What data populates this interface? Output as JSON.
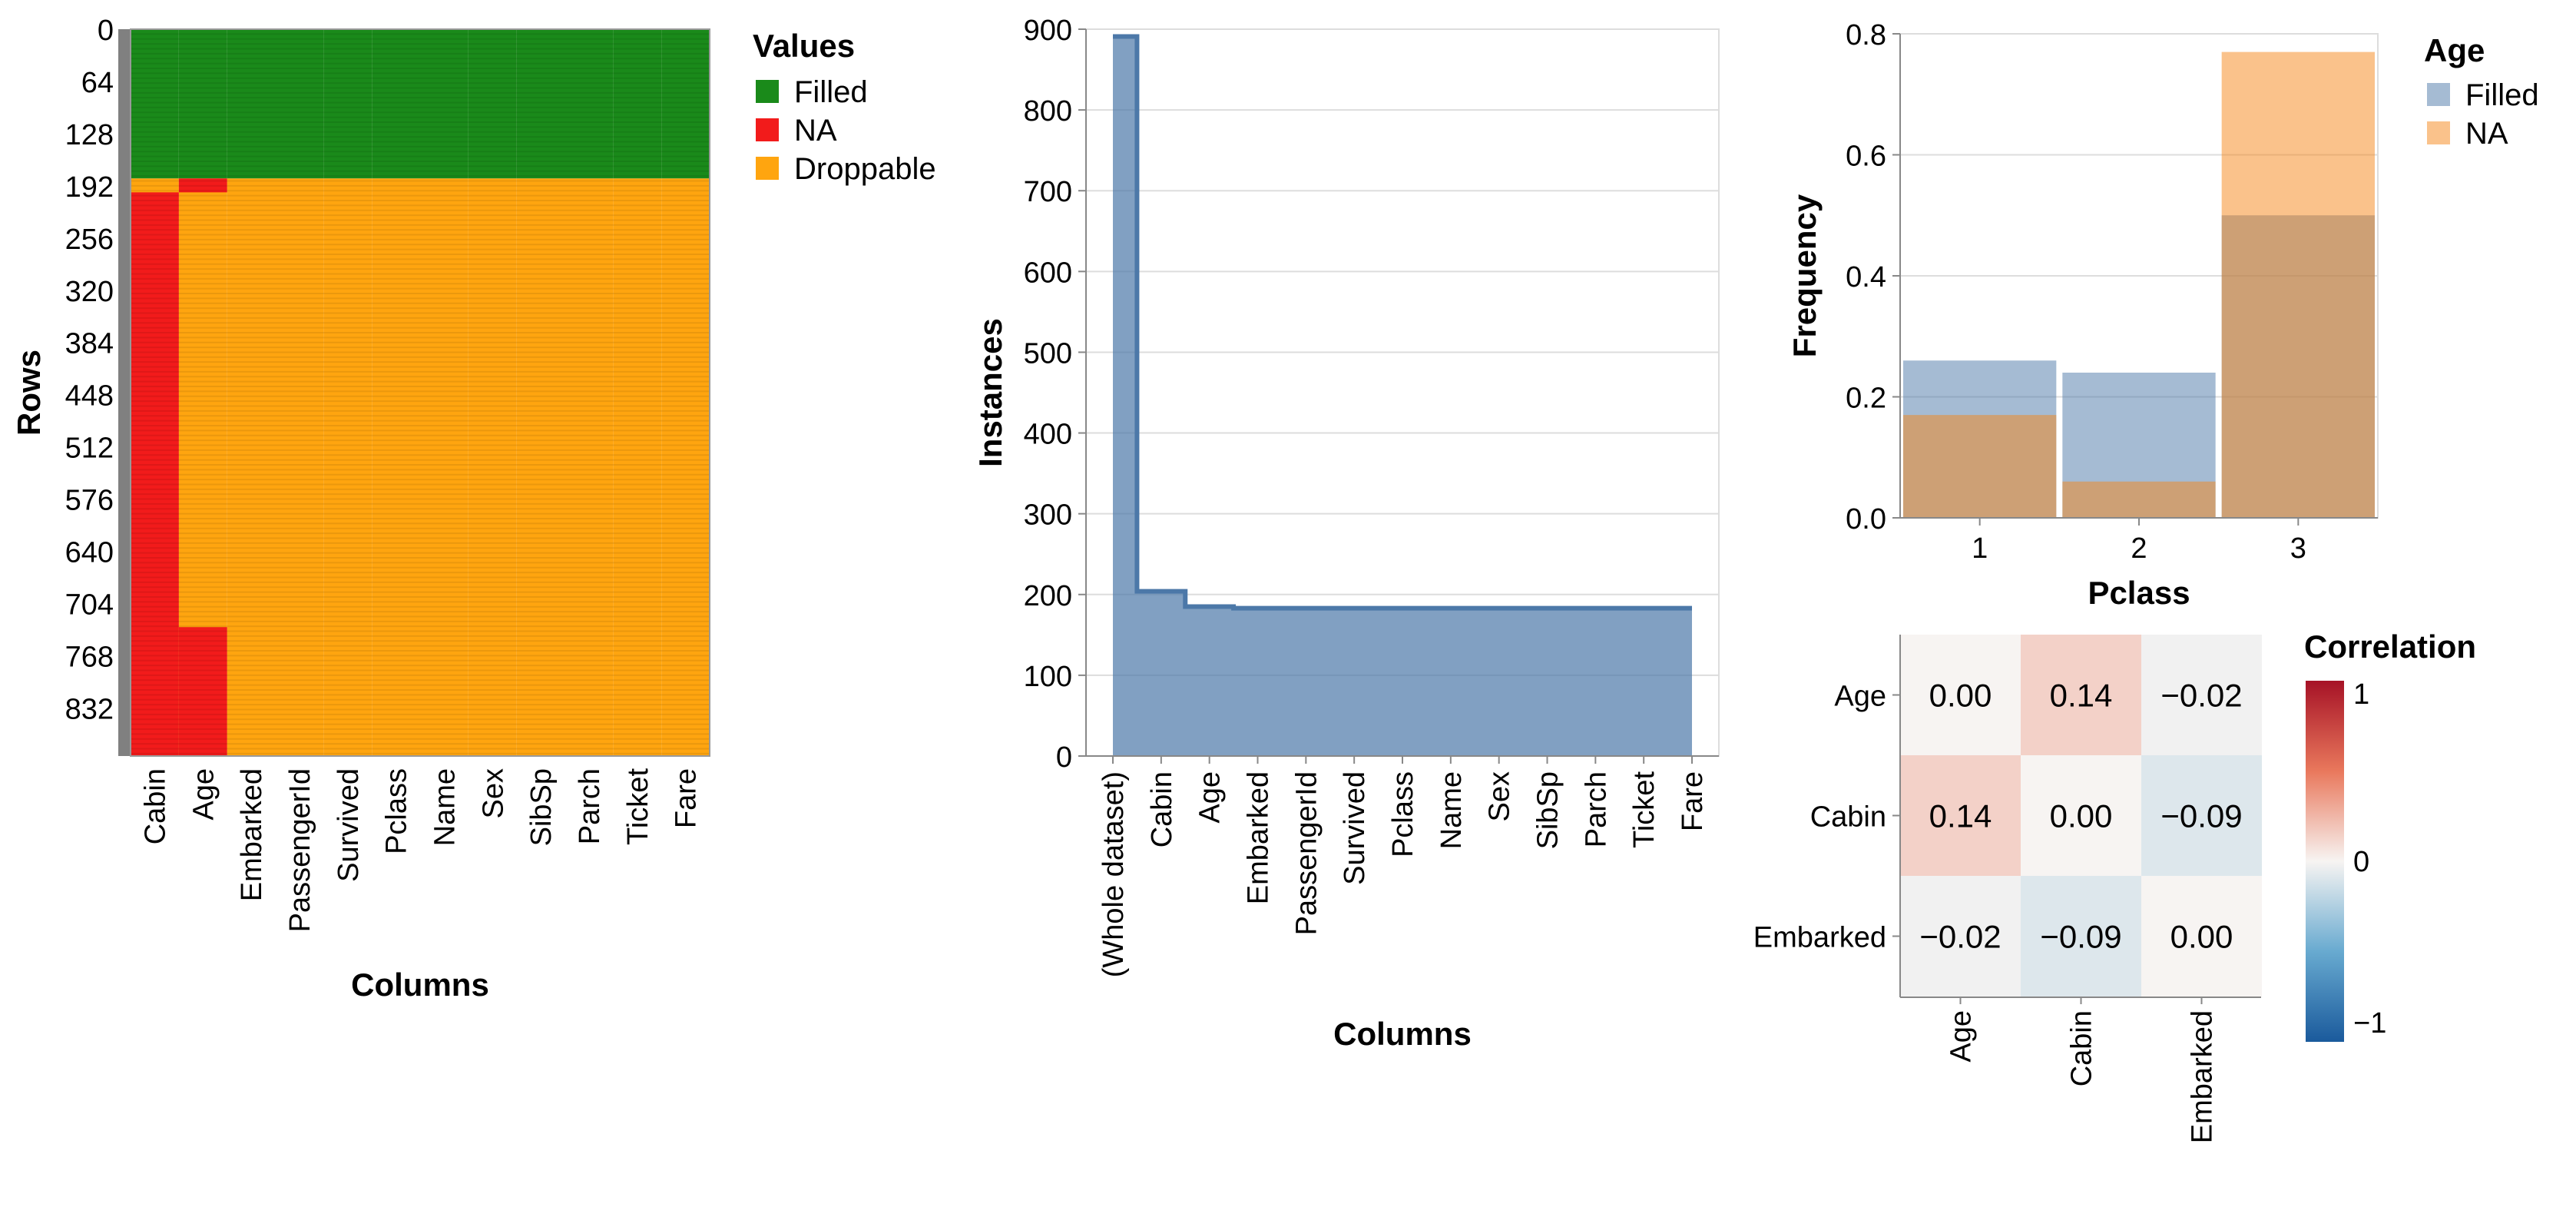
{
  "chart_data": [
    {
      "type": "heatmap",
      "xlabel": "Columns",
      "ylabel": "Rows",
      "columns": [
        "Cabin",
        "Age",
        "Embarked",
        "PassengerId",
        "Survived",
        "Pclass",
        "Name",
        "Sex",
        "SibSp",
        "Parch",
        "Ticket",
        "Fare"
      ],
      "row_ticks": [
        "0",
        "64",
        "128",
        "192",
        "256",
        "320",
        "384",
        "448",
        "512",
        "576",
        "640",
        "704",
        "768",
        "832"
      ],
      "n_rows": 891,
      "categories": {
        "filled": "Filled",
        "na": "NA",
        "droppable": "Droppable"
      },
      "colors": {
        "filled": "#1a8a1a",
        "na": "#f21b1b",
        "droppable": "#ffa50f"
      },
      "filled_rows_end": 183,
      "na_segments": [
        {
          "column": "Cabin",
          "from": 200,
          "to": 891
        },
        {
          "column": "Age",
          "from": 183,
          "to": 200
        },
        {
          "column": "Age",
          "from": 733,
          "to": 891
        }
      ],
      "legend": {
        "title": "Values",
        "entries": [
          "Filled",
          "NA",
          "Droppable"
        ],
        "position": "right"
      }
    },
    {
      "type": "area",
      "xlabel": "Columns",
      "ylabel": "Instances",
      "categories": [
        "(Whole dataset)",
        "Cabin",
        "Age",
        "Embarked",
        "PassengerId",
        "Survived",
        "Pclass",
        "Name",
        "Sex",
        "SibSp",
        "Parch",
        "Ticket",
        "Fare"
      ],
      "values": [
        891,
        204,
        185,
        183,
        183,
        183,
        183,
        183,
        183,
        183,
        183,
        183,
        183
      ],
      "yticks": [
        "0",
        "100",
        "200",
        "300",
        "400",
        "500",
        "600",
        "700",
        "800",
        "900"
      ],
      "ylim": [
        0,
        900
      ],
      "interpolation": "step",
      "color": "#4c78a8",
      "grid": true
    },
    {
      "type": "bar",
      "xlabel": "Pclass",
      "ylabel": "Frequency",
      "categories": [
        "1",
        "2",
        "3"
      ],
      "series": [
        {
          "name": "Filled",
          "values": [
            0.26,
            0.24,
            0.5
          ]
        },
        {
          "name": "NA",
          "values": [
            0.17,
            0.06,
            0.77
          ]
        }
      ],
      "yticks": [
        "0.0",
        "0.2",
        "0.4",
        "0.6",
        "0.8"
      ],
      "ylim": [
        0,
        0.8
      ],
      "colors": [
        "#4c78a8",
        "#f58518"
      ],
      "legend": {
        "title": "Age",
        "entries": [
          "Filled",
          "NA"
        ],
        "position": "right"
      },
      "overlay": true,
      "grid": true
    },
    {
      "type": "heatmap",
      "variables": [
        "Age",
        "Cabin",
        "Embarked"
      ],
      "matrix": [
        [
          0.0,
          0.14,
          -0.02
        ],
        [
          0.14,
          0.0,
          -0.09
        ],
        [
          -0.02,
          -0.09,
          0.0
        ]
      ],
      "labels": [
        [
          "0.00",
          "0.14",
          "−0.02"
        ],
        [
          "0.14",
          "0.00",
          "−0.09"
        ],
        [
          "−0.02",
          "−0.09",
          "0.00"
        ]
      ],
      "legend": {
        "title": "Correlation",
        "ticks": [
          "1",
          "0",
          "−1"
        ],
        "range": [
          -1,
          1
        ],
        "position": "right"
      },
      "colorscale": "redblue"
    }
  ]
}
